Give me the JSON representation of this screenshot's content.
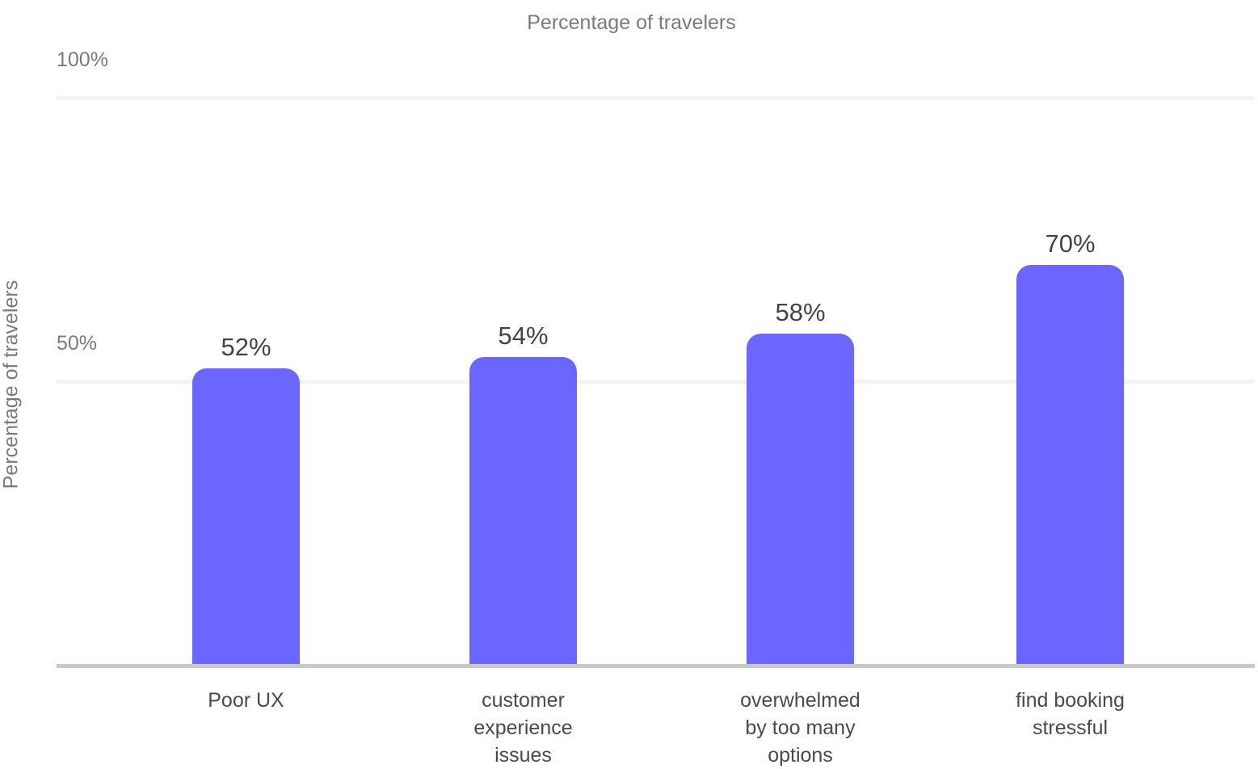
{
  "chart_data": {
    "type": "bar",
    "title": "Percentage of travelers",
    "xlabel": "",
    "ylabel": "Percentage of travelers",
    "ylim": [
      0,
      100
    ],
    "yticks": [
      "100%",
      "50%"
    ],
    "grid": true,
    "legend": null,
    "categories": [
      "Poor UX",
      "customer experience issues",
      "overwhelmed by too many options",
      "find booking stressful"
    ],
    "category_display": [
      "Poor UX",
      "customer\nexperience\nissues",
      "overwhelmed\nby too many\noptions",
      "find booking\nstressful"
    ],
    "values": [
      52,
      54,
      58,
      70
    ],
    "value_labels": [
      "52%",
      "54%",
      "58%",
      "70%"
    ],
    "bar_color": "#6a66ff"
  }
}
